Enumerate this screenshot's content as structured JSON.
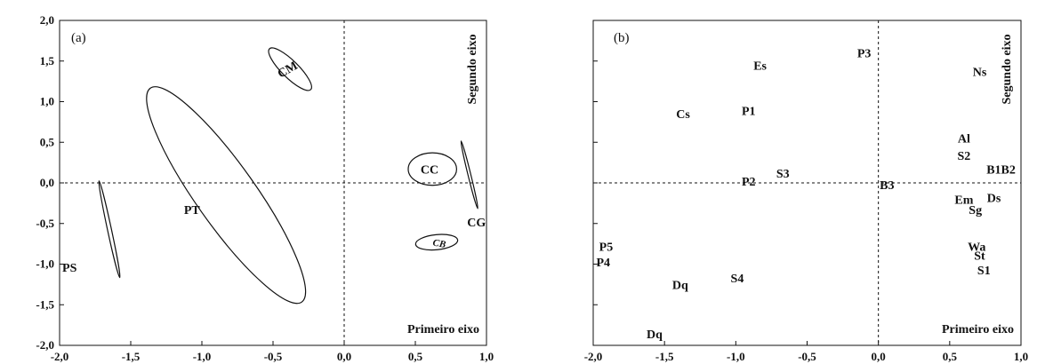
{
  "chart_data": [
    {
      "type": "scatter",
      "panel_tag": "(a)",
      "xlim": [
        -2.0,
        1.0
      ],
      "ylim": [
        -2.0,
        2.0
      ],
      "x_ticks": [
        "-2,0",
        "-1,5",
        "-1,0",
        "-0,5",
        "0,0",
        "0,5",
        "1,0"
      ],
      "y_ticks": [
        "2,0",
        "1,5",
        "1,0",
        "0,5",
        "0,0",
        "-0,5",
        "-1,0",
        "-1,5",
        "-2,0"
      ],
      "x_axis_title": "Primeiro eixo",
      "y_axis_title": "Segundo eixo",
      "grid": false,
      "reference_lines": {
        "x": 0,
        "y": 0
      },
      "ellipses": [
        {
          "label": "CM",
          "cx": -0.38,
          "cy": 1.4,
          "rx": 0.29,
          "ry": 0.065,
          "angle_deg": -60
        },
        {
          "label": "PT",
          "cx": -0.83,
          "cy": -0.15,
          "rx": 1.42,
          "ry": 0.22,
          "angle_deg": -68
        },
        {
          "label": "PS",
          "cx": -1.65,
          "cy": -0.57,
          "rx": 0.6,
          "ry": 0.014,
          "angle_deg": -83
        },
        {
          "label": "CC",
          "cx": 0.62,
          "cy": 0.17,
          "rx": 0.17,
          "ry": 0.2,
          "angle_deg": 0
        },
        {
          "label": "CB",
          "cx": 0.65,
          "cy": -0.73,
          "rx": 0.15,
          "ry": 0.09,
          "angle_deg": 10
        },
        {
          "label": "CG",
          "cx": 0.88,
          "cy": 0.1,
          "rx": 0.42,
          "ry": 0.01,
          "angle_deg": -82
        }
      ],
      "labels": [
        {
          "text": "CM",
          "x": -0.4,
          "y": 1.4
        },
        {
          "text": "PT",
          "x": -1.07,
          "y": -0.33
        },
        {
          "text": "PS",
          "x": -1.93,
          "y": -1.04
        },
        {
          "text": "CC",
          "x": 0.6,
          "y": 0.17
        },
        {
          "text": "CB",
          "x": 0.67,
          "y": -0.73
        },
        {
          "text": "CG",
          "x": 0.93,
          "y": -0.48
        }
      ]
    },
    {
      "type": "scatter",
      "panel_tag": "(b)",
      "xlim": [
        -2.0,
        1.0
      ],
      "ylim": [
        -2.0,
        2.0
      ],
      "x_ticks": [
        "-2,0",
        "-1,5",
        "-1,0",
        "-0,5",
        "0,0",
        "0,5",
        "1,0"
      ],
      "y_ticks": [],
      "x_axis_title": "Primeiro eixo",
      "y_axis_title": "Segundo eixo",
      "grid": false,
      "reference_lines": {
        "x": 0,
        "y": 0
      },
      "labels": [
        {
          "text": "P3",
          "x": -0.1,
          "y": 1.6
        },
        {
          "text": "Es",
          "x": -0.83,
          "y": 1.45
        },
        {
          "text": "Ns",
          "x": 0.71,
          "y": 1.37
        },
        {
          "text": "Cs",
          "x": -1.37,
          "y": 0.85
        },
        {
          "text": "P1",
          "x": -0.91,
          "y": 0.89
        },
        {
          "text": "Al",
          "x": 0.6,
          "y": 0.55
        },
        {
          "text": "S2",
          "x": 0.6,
          "y": 0.34
        },
        {
          "text": "S3",
          "x": -0.67,
          "y": 0.12
        },
        {
          "text": "B1B2",
          "x": 0.86,
          "y": 0.17
        },
        {
          "text": "P2",
          "x": -0.91,
          "y": 0.02
        },
        {
          "text": "B3",
          "x": 0.06,
          "y": -0.02
        },
        {
          "text": "Em",
          "x": 0.6,
          "y": -0.2
        },
        {
          "text": "Ds",
          "x": 0.81,
          "y": -0.18
        },
        {
          "text": "Sg",
          "x": 0.68,
          "y": -0.33
        },
        {
          "text": "P5",
          "x": -1.91,
          "y": -0.78
        },
        {
          "text": "Wa",
          "x": 0.69,
          "y": -0.78
        },
        {
          "text": "St",
          "x": 0.71,
          "y": -0.89
        },
        {
          "text": "P4",
          "x": -1.93,
          "y": -0.97
        },
        {
          "text": "S1",
          "x": 0.74,
          "y": -1.07
        },
        {
          "text": "S4",
          "x": -0.99,
          "y": -1.17
        },
        {
          "text": "Dq",
          "x": -1.39,
          "y": -1.25
        },
        {
          "text": "Dq",
          "x": -1.57,
          "y": -1.86
        }
      ]
    }
  ]
}
